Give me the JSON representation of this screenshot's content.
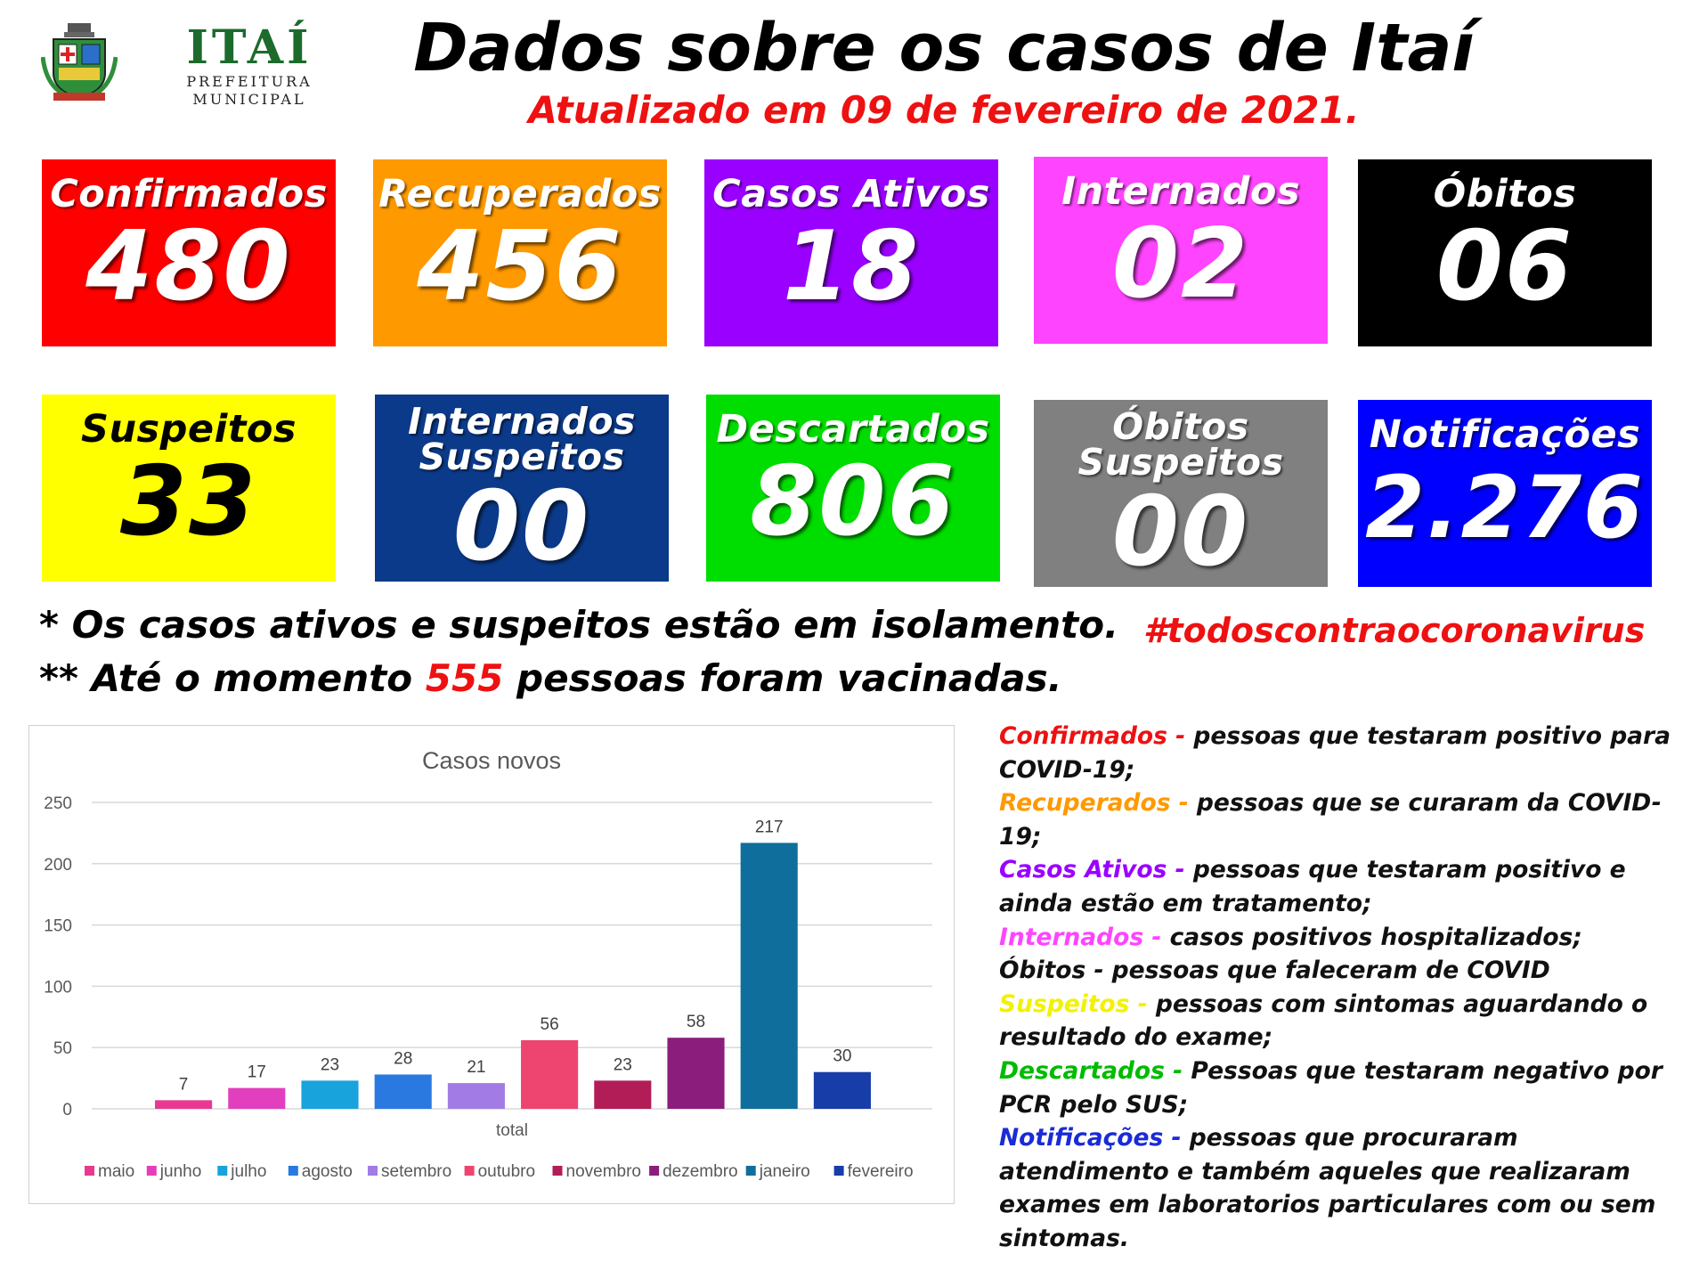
{
  "header": {
    "brand_name": "ITAÍ",
    "brand_sub": "PREFEITURA MUNICIPAL",
    "title": "Dados sobre os casos de Itaí",
    "updated": "Atualizado em 09 de fevereiro de 2021."
  },
  "stats": [
    {
      "label": "Confirmados",
      "value": "480",
      "color": "#ff0000"
    },
    {
      "label": "Recuperados",
      "value": "456",
      "color": "#ff9900"
    },
    {
      "label": "Casos Ativos",
      "value": "18",
      "color": "#9900ff"
    },
    {
      "label": "Internados",
      "value": "02",
      "color": "#ff44ff"
    },
    {
      "label": "Óbitos",
      "value": "06",
      "color": "#000000"
    },
    {
      "label": "Suspeitos",
      "value": "33",
      "color": "#ffff00"
    },
    {
      "label": "Internados Suspeitos",
      "value": "00",
      "color": "#0b3a8a"
    },
    {
      "label": "Descartados",
      "value": "806",
      "color": "#00dd00"
    },
    {
      "label": "Óbitos Suspeitos",
      "value": "00",
      "color": "#808080"
    },
    {
      "label": "Notificações",
      "value": "2.276",
      "color": "#0000ff"
    }
  ],
  "notes": {
    "isolation": "* Os casos ativos e suspeitos estão em isolamento.",
    "vacc_pre": "** Até o momento ",
    "vacc_num": "555",
    "vacc_post": " pessoas foram vacinadas.",
    "hashtag": "#todoscontraocoronavirus"
  },
  "chart_data": {
    "type": "bar",
    "title": "Casos novos",
    "xlabel": "total",
    "ylabel": "",
    "ylim": [
      0,
      250
    ],
    "yticks": [
      0,
      50,
      100,
      150,
      200,
      250
    ],
    "categories": [
      "total"
    ],
    "legend_position": "bottom",
    "grid": true,
    "series": [
      {
        "name": "maio",
        "values": [
          7
        ],
        "color": "#e8388f"
      },
      {
        "name": "junho",
        "values": [
          17
        ],
        "color": "#e23fbe"
      },
      {
        "name": "julho",
        "values": [
          23
        ],
        "color": "#19a3dc"
      },
      {
        "name": "agosto",
        "values": [
          28
        ],
        "color": "#2a79e0"
      },
      {
        "name": "setembro",
        "values": [
          21
        ],
        "color": "#a27ce4"
      },
      {
        "name": "outubro",
        "values": [
          56
        ],
        "color": "#ee4570"
      },
      {
        "name": "novembro",
        "values": [
          23
        ],
        "color": "#b21d58"
      },
      {
        "name": "dezembro",
        "values": [
          58
        ],
        "color": "#8b1d7c"
      },
      {
        "name": "janeiro",
        "values": [
          217
        ],
        "color": "#0f6e9c"
      },
      {
        "name": "fevereiro",
        "values": [
          30
        ],
        "color": "#173ea8"
      }
    ]
  },
  "definitions": [
    {
      "term": "Confirmados -",
      "text": " pessoas que testaram positivo para COVID-19;",
      "color": "#ee1111"
    },
    {
      "term": "Recuperados -",
      "text": " pessoas que se curaram da COVID-19;",
      "color": "#ff9900"
    },
    {
      "term": "Casos Ativos -",
      "text": " pessoas que testaram positivo e ainda estão em tratamento;",
      "color": "#9900ff"
    },
    {
      "term": "Internados - ",
      "text": " casos positivos hospitalizados;",
      "color": "#ff44ff"
    },
    {
      "term": "Óbitos -",
      "text": " pessoas que faleceram de COVID",
      "color": "#111111"
    },
    {
      "term": "Suspeitos -",
      "text": " pessoas com sintomas aguardando o resultado do exame;",
      "color": "#f2f200"
    },
    {
      "term": "Descartados -",
      "text": " Pessoas que testaram negativo por PCR pelo SUS;",
      "color": "#00bb00"
    },
    {
      "term": "Notificações -",
      "text": " pessoas que procuraram atendimento e também aqueles que realizaram exames em laboratorios particulares com ou sem sintomas.",
      "color": "#1a2bd6"
    }
  ]
}
